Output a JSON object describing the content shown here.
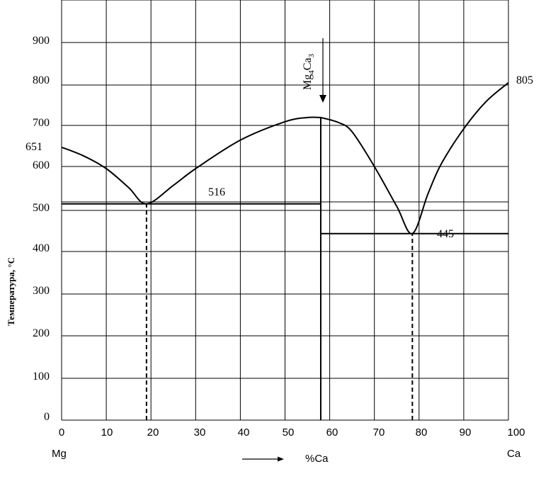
{
  "chart_data": {
    "type": "line",
    "title": "",
    "xlabel": "%Ca",
    "ylabel": "Температура, °С",
    "left_element": "Mg",
    "right_element": "Ca",
    "xlim": [
      0,
      100
    ],
    "x_ticks": [
      "0",
      "10",
      "20",
      "30",
      "40",
      "50",
      "60",
      "70",
      "80",
      "90",
      "100"
    ],
    "y_ticks": [
      "0",
      "100",
      "200",
      "300",
      "400",
      "500",
      "600",
      "700",
      "800",
      "900"
    ],
    "grid": true,
    "series": [
      {
        "points": [
          [
            0,
            651
          ],
          [
            5,
            630
          ],
          [
            10,
            600
          ],
          [
            15,
            555
          ],
          [
            19,
            516
          ],
          [
            25,
            560
          ],
          [
            30,
            600
          ],
          [
            40,
            668
          ],
          [
            50,
            712
          ],
          [
            55,
            722
          ],
          [
            58,
            722
          ]
        ]
      },
      {
        "points": [
          [
            58,
            722
          ],
          [
            62,
            710
          ],
          [
            65,
            688
          ],
          [
            70,
            605
          ],
          [
            75,
            510
          ],
          [
            78.5,
            445
          ],
          [
            82,
            540
          ],
          [
            85,
            612
          ],
          [
            90,
            695
          ],
          [
            95,
            760
          ],
          [
            100,
            805
          ]
        ]
      }
    ],
    "reference_lines": [
      {
        "kind": "horizontal",
        "y": 516,
        "x_from": 0,
        "x_to": 58,
        "label": "516"
      },
      {
        "kind": "horizontal",
        "y": 445,
        "x_from": 58,
        "x_to": 100,
        "label": "445"
      },
      {
        "kind": "vertical",
        "x": 58,
        "y_from": 0,
        "y_to": 722,
        "style": "solid"
      },
      {
        "kind": "vertical",
        "x": 19,
        "y_from": 0,
        "y_to": 516,
        "style": "dashed"
      },
      {
        "kind": "vertical",
        "x": 78.5,
        "y_from": 0,
        "y_to": 445,
        "style": "dashed"
      }
    ],
    "annotations": [
      {
        "text": "651",
        "x": 0,
        "y": 651
      },
      {
        "text": "805",
        "x": 100,
        "y": 805
      },
      {
        "compound_base": "Mg",
        "compound_sub1": "4",
        "compound_mid": "Ca",
        "compound_sub2": "3",
        "x": 58
      }
    ]
  }
}
